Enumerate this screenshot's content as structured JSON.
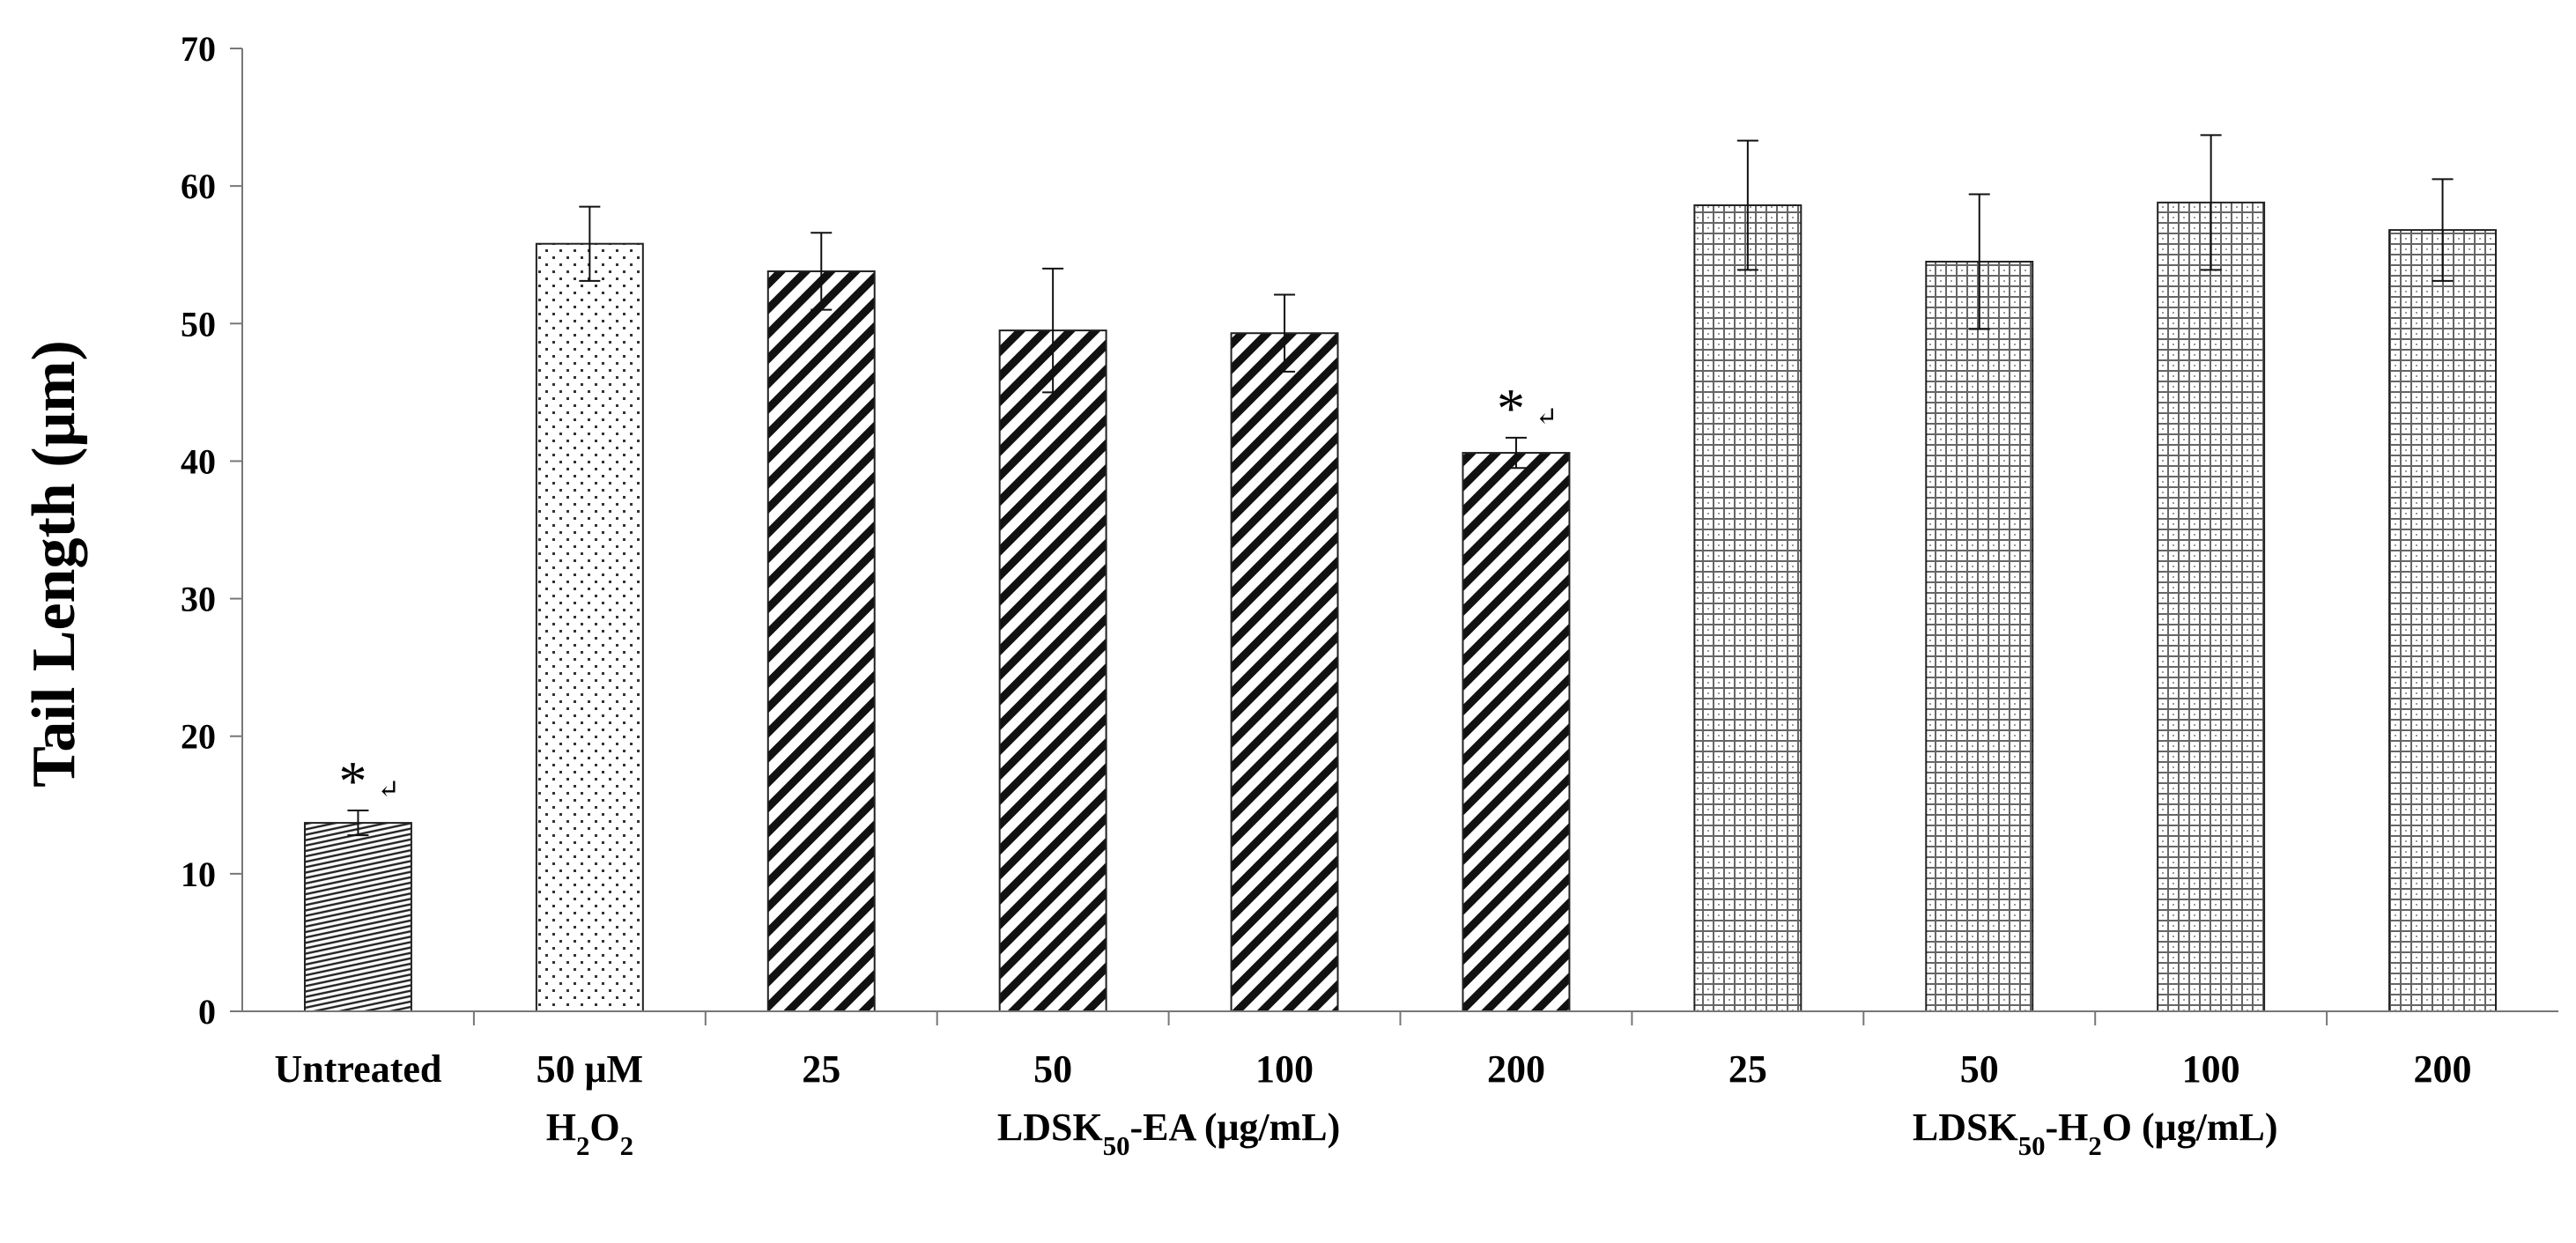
{
  "chart_data": {
    "type": "bar",
    "title": "",
    "xlabel": "",
    "ylabel": "Tail Length (μm)",
    "ylim": [
      0,
      70
    ],
    "yticks": [
      0,
      10,
      20,
      30,
      40,
      50,
      60,
      70
    ],
    "grid": false,
    "legend": "none",
    "bars": [
      {
        "label": "Untreated",
        "label2": "",
        "value": 13.7,
        "error": 0.9,
        "pattern": "horizontal-lines",
        "significant": true
      },
      {
        "label": "50 μM",
        "label2": "H2O2",
        "value": 55.8,
        "error": 2.7,
        "pattern": "sparse-dots",
        "significant": false
      },
      {
        "label": "25",
        "label2": "",
        "value": 53.8,
        "error": 2.8,
        "pattern": "diagonal-stripes",
        "significant": false
      },
      {
        "label": "50",
        "label2": "",
        "value": 49.5,
        "error": 4.5,
        "pattern": "diagonal-stripes",
        "significant": false
      },
      {
        "label": "100",
        "label2": "",
        "value": 49.3,
        "error": 2.8,
        "pattern": "diagonal-stripes",
        "significant": false
      },
      {
        "label": "200",
        "label2": "",
        "value": 40.6,
        "error": 1.1,
        "pattern": "diagonal-stripes",
        "significant": true
      },
      {
        "label": "25",
        "label2": "",
        "value": 58.6,
        "error": 4.7,
        "pattern": "dotted-grid",
        "significant": false
      },
      {
        "label": "50",
        "label2": "",
        "value": 54.5,
        "error": 4.9,
        "pattern": "dotted-grid",
        "significant": false
      },
      {
        "label": "100",
        "label2": "",
        "value": 58.8,
        "error": 4.9,
        "pattern": "dotted-grid",
        "significant": false
      },
      {
        "label": "200",
        "label2": "",
        "value": 56.8,
        "error": 3.7,
        "pattern": "dotted-grid",
        "significant": false
      }
    ],
    "groups": [
      {
        "label": "LDSK50-EA (μg/mL)",
        "from": 2,
        "to": 5
      },
      {
        "label": "LDSK50-H2O (μg/mL)",
        "from": 6,
        "to": 9
      }
    ],
    "annotation_symbol": "*",
    "annotation_suffix": "↵"
  }
}
